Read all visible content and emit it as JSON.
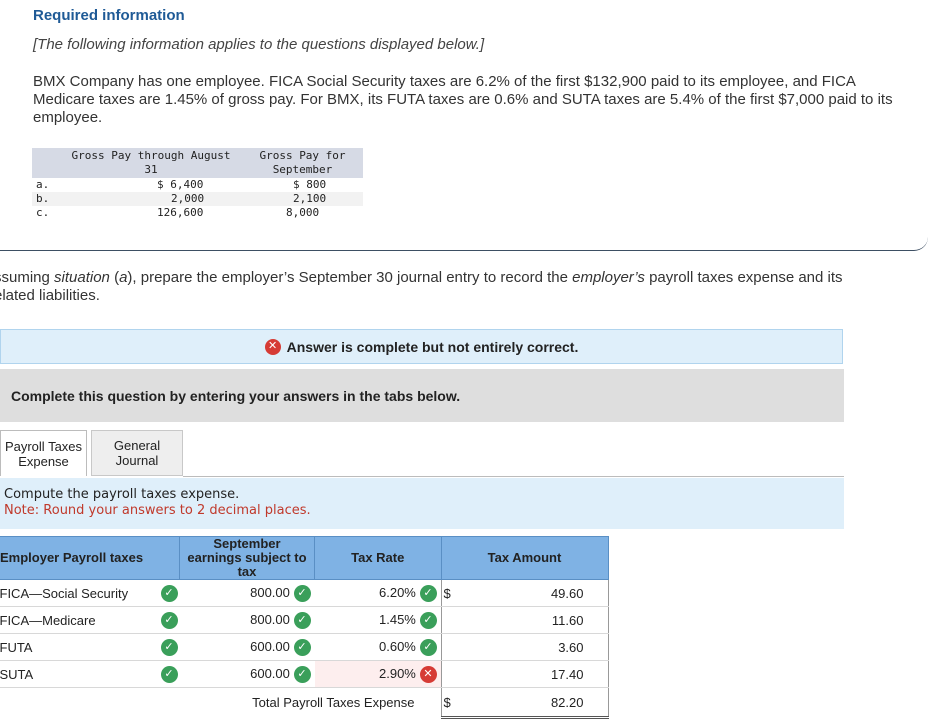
{
  "header": {
    "title": "Required information",
    "note": "[The following information applies to the questions displayed below.]",
    "intro": "BMX Company has one employee. FICA Social Security taxes are 6.2% of the first $132,900 paid to its employee, and FICA Medicare taxes are 1.45% of gross pay. For BMX, its FUTA taxes are 0.6% and SUTA taxes are 5.4% of the first $7,000 paid to its employee."
  },
  "pay_table": {
    "headers": [
      "Gross Pay through August 31",
      "Gross Pay for September"
    ],
    "rows": [
      {
        "label": "a.",
        "through_august": "$ 6,400",
        "september": "$ 800"
      },
      {
        "label": "b.",
        "through_august": "2,000",
        "september": "2,100"
      },
      {
        "label": "c.",
        "through_august": "126,600",
        "september": "8,000"
      }
    ]
  },
  "question": {
    "part1": "ssuming ",
    "italic1": "situation",
    "part2": " (",
    "italic2": "a",
    "part3": "), prepare the employer’s September 30 journal entry to record the ",
    "italic3": "employer’s",
    "part4": " payroll taxes expense and its",
    "line2": "elated liabilities."
  },
  "status": {
    "icon": "x-circle-icon",
    "text": "Answer is complete but not entirely correct."
  },
  "instructions": "Complete this question by entering your answers in the tabs below.",
  "tabs": [
    {
      "label_line1": "Payroll Taxes",
      "label_line2": "Expense",
      "active": true
    },
    {
      "label_line1": "General",
      "label_line2": "Journal",
      "active": false
    }
  ],
  "panel": {
    "prompt": "Compute the payroll taxes expense.",
    "note": "Note: Round your answers to 2 decimal places."
  },
  "tax_table": {
    "headers": {
      "name": "Employer Payroll taxes",
      "earnings": "September earnings subject to tax",
      "rate": "Tax Rate",
      "amount": "Tax Amount"
    },
    "rows": [
      {
        "name": "FICA—Social Security",
        "earnings": "800.00",
        "rate": "6.20%",
        "dollar": "$",
        "amount": "49.60",
        "rate_correct": true
      },
      {
        "name": "FICA—Medicare",
        "earnings": "800.00",
        "rate": "1.45%",
        "dollar": "",
        "amount": "11.60",
        "rate_correct": true
      },
      {
        "name": "FUTA",
        "earnings": "600.00",
        "rate": "0.60%",
        "dollar": "",
        "amount": "3.60",
        "rate_correct": true
      },
      {
        "name": "SUTA",
        "earnings": "600.00",
        "rate": "2.90%",
        "dollar": "",
        "amount": "17.40",
        "rate_correct": false
      }
    ],
    "total_label": "Total Payroll Taxes Expense",
    "total_dollar": "$",
    "total_amount": "82.20"
  },
  "colors": {
    "correct": "#3a9f5a",
    "incorrect": "#d63b35",
    "header_blue": "#7fb2e4",
    "panel_blue": "#dfeffa",
    "title_blue": "#1f5a96",
    "note_red": "#c0392b"
  }
}
